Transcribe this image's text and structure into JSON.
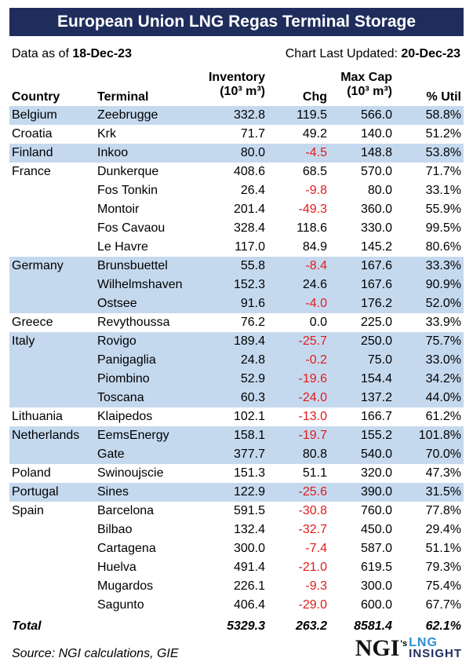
{
  "title": "European Union LNG Regas Terminal Storage",
  "meta": {
    "data_as_of_label": "Data as of ",
    "data_as_of_value": "18-Dec-23",
    "chart_updated_label": "Chart Last Updated: ",
    "chart_updated_value": "20-Dec-23"
  },
  "headers": {
    "country": "Country",
    "terminal": "Terminal",
    "inventory_top": "Inventory",
    "inventory_unit": "(10³ m³)",
    "chg": "Chg",
    "maxcap_top": "Max Cap",
    "maxcap_unit": "(10³ m³)",
    "util": "% Util"
  },
  "rows": [
    {
      "country": "Belgium",
      "terminal": "Zeebrugge",
      "inventory": "332.8",
      "chg": "119.5",
      "max_cap": "566.0",
      "util": "58.8%",
      "shaded": true
    },
    {
      "country": "Croatia",
      "terminal": "Krk",
      "inventory": "71.7",
      "chg": "49.2",
      "max_cap": "140.0",
      "util": "51.2%",
      "shaded": false
    },
    {
      "country": "Finland",
      "terminal": "Inkoo",
      "inventory": "80.0",
      "chg": "-4.5",
      "max_cap": "148.8",
      "util": "53.8%",
      "shaded": true
    },
    {
      "country": "France",
      "terminal": "Dunkerque",
      "inventory": "408.6",
      "chg": "68.5",
      "max_cap": "570.0",
      "util": "71.7%",
      "shaded": false
    },
    {
      "country": "",
      "terminal": "Fos Tonkin",
      "inventory": "26.4",
      "chg": "-9.8",
      "max_cap": "80.0",
      "util": "33.1%",
      "shaded": false
    },
    {
      "country": "",
      "terminal": "Montoir",
      "inventory": "201.4",
      "chg": "-49.3",
      "max_cap": "360.0",
      "util": "55.9%",
      "shaded": false
    },
    {
      "country": "",
      "terminal": "Fos Cavaou",
      "inventory": "328.4",
      "chg": "118.6",
      "max_cap": "330.0",
      "util": "99.5%",
      "shaded": false
    },
    {
      "country": "",
      "terminal": "Le Havre",
      "inventory": "117.0",
      "chg": "84.9",
      "max_cap": "145.2",
      "util": "80.6%",
      "shaded": false
    },
    {
      "country": "Germany",
      "terminal": "Brunsbuettel",
      "inventory": "55.8",
      "chg": "-8.4",
      "max_cap": "167.6",
      "util": "33.3%",
      "shaded": true
    },
    {
      "country": "",
      "terminal": "Wilhelmshaven",
      "inventory": "152.3",
      "chg": "24.6",
      "max_cap": "167.6",
      "util": "90.9%",
      "shaded": true
    },
    {
      "country": "",
      "terminal": "Ostsee",
      "inventory": "91.6",
      "chg": "-4.0",
      "max_cap": "176.2",
      "util": "52.0%",
      "shaded": true
    },
    {
      "country": "Greece",
      "terminal": "Revythoussa",
      "inventory": "76.2",
      "chg": "0.0",
      "max_cap": "225.0",
      "util": "33.9%",
      "shaded": false
    },
    {
      "country": "Italy",
      "terminal": "Rovigo",
      "inventory": "189.4",
      "chg": "-25.7",
      "max_cap": "250.0",
      "util": "75.7%",
      "shaded": true
    },
    {
      "country": "",
      "terminal": "Panigaglia",
      "inventory": "24.8",
      "chg": "-0.2",
      "max_cap": "75.0",
      "util": "33.0%",
      "shaded": true
    },
    {
      "country": "",
      "terminal": "Piombino",
      "inventory": "52.9",
      "chg": "-19.6",
      "max_cap": "154.4",
      "util": "34.2%",
      "shaded": true
    },
    {
      "country": "",
      "terminal": "Toscana",
      "inventory": "60.3",
      "chg": "-24.0",
      "max_cap": "137.2",
      "util": "44.0%",
      "shaded": true
    },
    {
      "country": "Lithuania",
      "terminal": "Klaipedos",
      "inventory": "102.1",
      "chg": "-13.0",
      "max_cap": "166.7",
      "util": "61.2%",
      "shaded": false
    },
    {
      "country": "Netherlands",
      "terminal": "EemsEnergy",
      "inventory": "158.1",
      "chg": "-19.7",
      "max_cap": "155.2",
      "util": "101.8%",
      "shaded": true
    },
    {
      "country": "",
      "terminal": "Gate",
      "inventory": "377.7",
      "chg": "80.8",
      "max_cap": "540.0",
      "util": "70.0%",
      "shaded": true
    },
    {
      "country": "Poland",
      "terminal": "Swinoujscie",
      "inventory": "151.3",
      "chg": "51.1",
      "max_cap": "320.0",
      "util": "47.3%",
      "shaded": false
    },
    {
      "country": "Portugal",
      "terminal": "Sines",
      "inventory": "122.9",
      "chg": "-25.6",
      "max_cap": "390.0",
      "util": "31.5%",
      "shaded": true
    },
    {
      "country": "Spain",
      "terminal": "Barcelona",
      "inventory": "591.5",
      "chg": "-30.8",
      "max_cap": "760.0",
      "util": "77.8%",
      "shaded": false
    },
    {
      "country": "",
      "terminal": "Bilbao",
      "inventory": "132.4",
      "chg": "-32.7",
      "max_cap": "450.0",
      "util": "29.4%",
      "shaded": false
    },
    {
      "country": "",
      "terminal": "Cartagena",
      "inventory": "300.0",
      "chg": "-7.4",
      "max_cap": "587.0",
      "util": "51.1%",
      "shaded": false
    },
    {
      "country": "",
      "terminal": "Huelva",
      "inventory": "491.4",
      "chg": "-21.0",
      "max_cap": "619.5",
      "util": "79.3%",
      "shaded": false
    },
    {
      "country": "",
      "terminal": "Mugardos",
      "inventory": "226.1",
      "chg": "-9.3",
      "max_cap": "300.0",
      "util": "75.4%",
      "shaded": false
    },
    {
      "country": "",
      "terminal": "Sagunto",
      "inventory": "406.4",
      "chg": "-29.0",
      "max_cap": "600.0",
      "util": "67.7%",
      "shaded": false
    }
  ],
  "total": {
    "label": "Total",
    "inventory": "5329.3",
    "chg": "263.2",
    "max_cap": "8581.4",
    "util": "62.1%"
  },
  "source": "Source: NGI calculations, GIE",
  "logo": {
    "ngi": "NGI",
    "s": "'s",
    "lng": "LNG",
    "insight": "INSIGHT"
  },
  "colors": {
    "title_bg": "#1f2d5c",
    "shade": "#c5d9ee",
    "negative": "#e01b1b",
    "logo_blue": "#2b8fd6"
  }
}
